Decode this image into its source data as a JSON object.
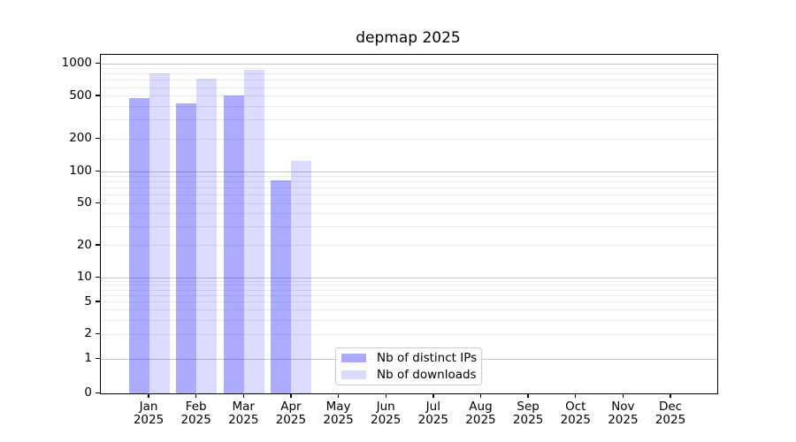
{
  "chart_data": {
    "type": "bar",
    "title": "depmap 2025",
    "x_tick_labels": [
      {
        "line1": "Jan",
        "line2": "2025"
      },
      {
        "line1": "Feb",
        "line2": "2025"
      },
      {
        "line1": "Mar",
        "line2": "2025"
      },
      {
        "line1": "Apr",
        "line2": "2025"
      },
      {
        "line1": "May",
        "line2": "2025"
      },
      {
        "line1": "Jun",
        "line2": "2025"
      },
      {
        "line1": "Jul",
        "line2": "2025"
      },
      {
        "line1": "Aug",
        "line2": "2025"
      },
      {
        "line1": "Sep",
        "line2": "2025"
      },
      {
        "line1": "Oct",
        "line2": "2025"
      },
      {
        "line1": "Nov",
        "line2": "2025"
      },
      {
        "line1": "Dec",
        "line2": "2025"
      }
    ],
    "series": [
      {
        "name": "Nb of distinct IPs",
        "color": "#0000ff54",
        "values": [
          480,
          430,
          505,
          82,
          0,
          0,
          0,
          0,
          0,
          0,
          0,
          0
        ]
      },
      {
        "name": "Nb of downloads",
        "color": "#0000ff24",
        "values": [
          815,
          725,
          875,
          125,
          0,
          0,
          0,
          0,
          0,
          0,
          0,
          0
        ]
      }
    ],
    "yscale": "symlog",
    "y_tick_values": [
      0,
      1,
      2,
      5,
      10,
      20,
      50,
      100,
      200,
      500,
      1000
    ],
    "ylim": [
      0,
      1200
    ],
    "grid": "horizontal-major-and-log-minor",
    "legend_position": "inside-lower-center-left",
    "colors": {
      "bar_distinct_ips": "#aaaaff",
      "bar_downloads": "#dcdcff",
      "grid_major": "#c6c6c6",
      "grid_minor": "#ebebeb",
      "axis": "#000000",
      "legend_border": "#cccccc"
    }
  }
}
